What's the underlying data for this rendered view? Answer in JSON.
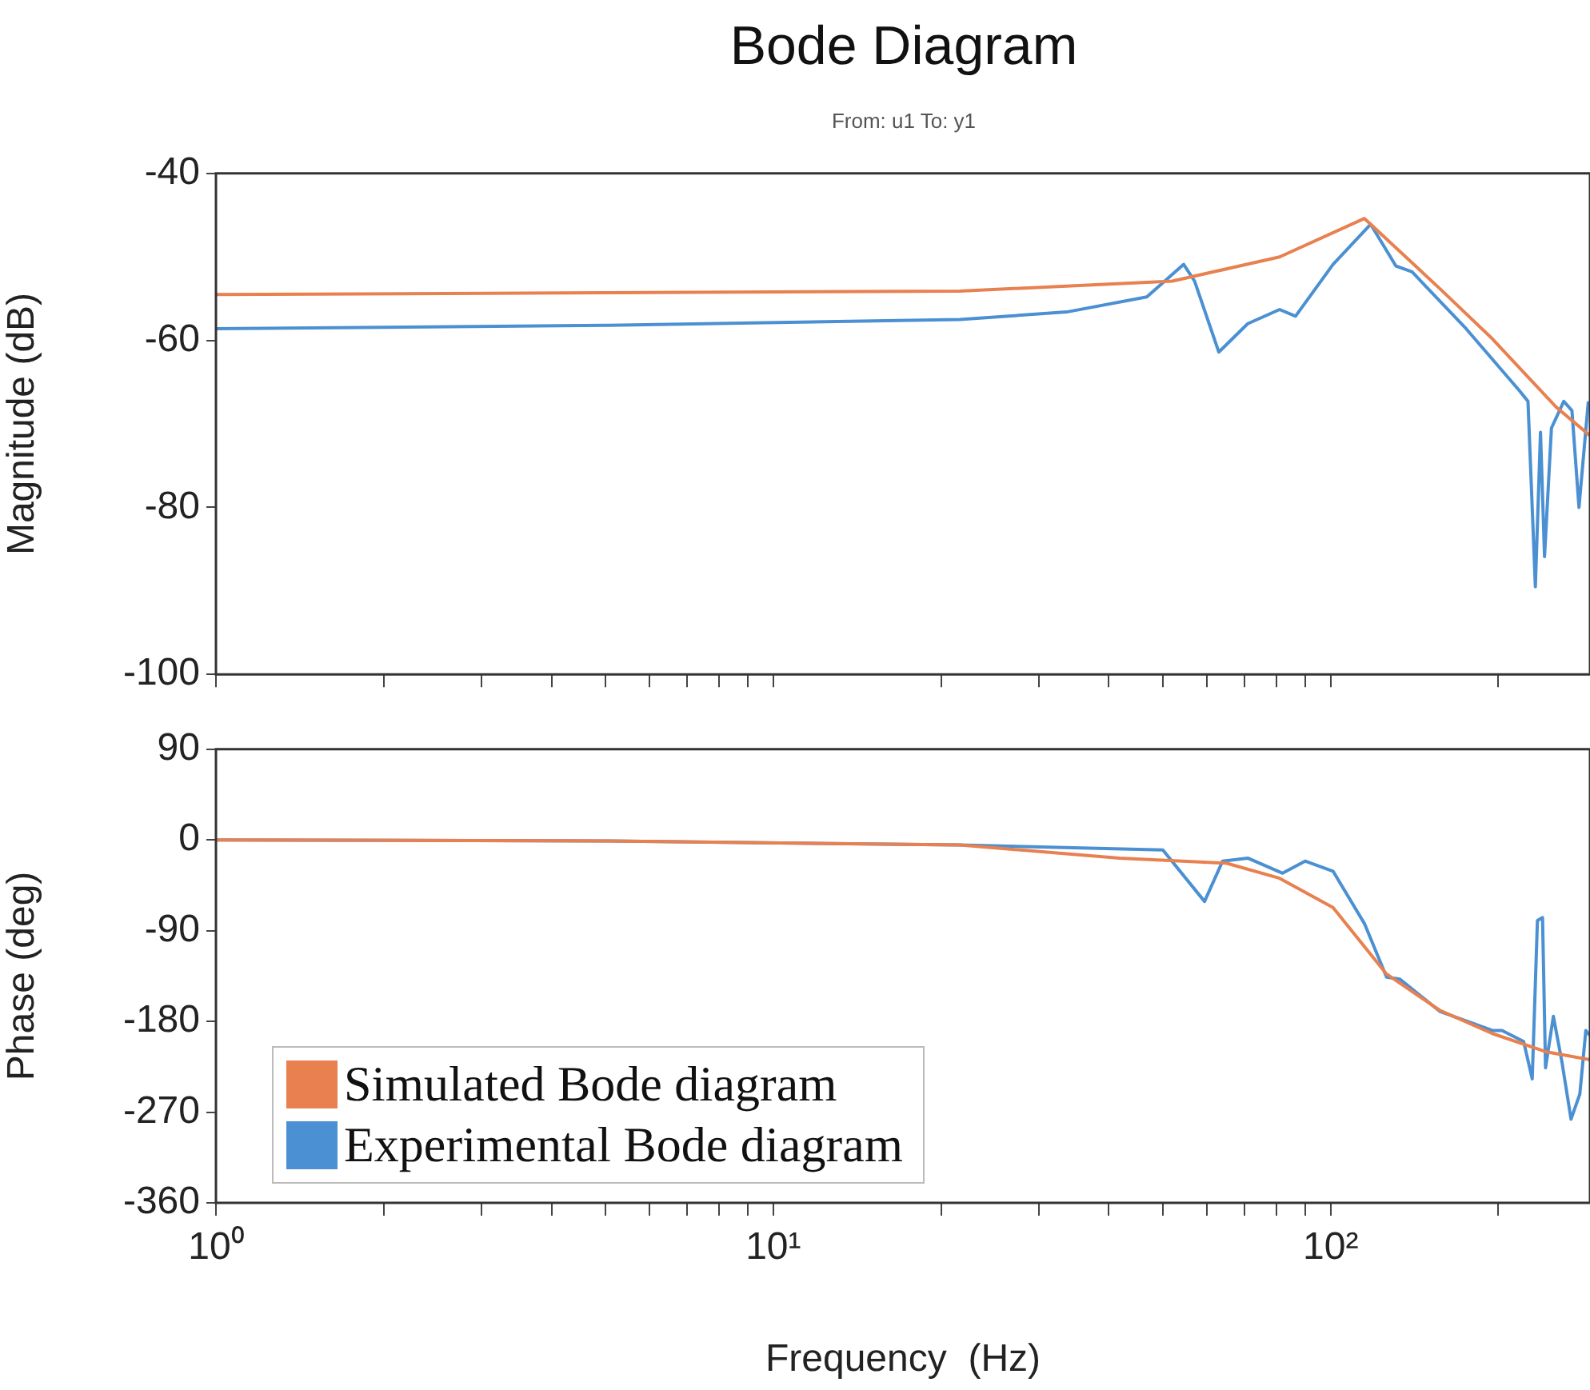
{
  "chart_data": [
    {
      "type": "line",
      "title": "Bode Diagram",
      "subtitle": "From: u1  To: y1",
      "ylabel": "Magnitude (dB)",
      "log": "x",
      "grid": false,
      "legend": false,
      "marker": "none",
      "line_style": "solid",
      "tick_labels": "y",
      "xlim": [
        1,
        292
      ],
      "ylim": [
        -100,
        -40
      ],
      "yticks": [
        -100,
        -80,
        -60,
        -40
      ],
      "xticks": [
        {
          "value": 1,
          "label": null
        },
        {
          "value": 2,
          "label": null
        },
        {
          "value": 3,
          "label": null
        },
        {
          "value": 4,
          "label": null
        },
        {
          "value": 5,
          "label": null
        },
        {
          "value": 6,
          "label": null
        },
        {
          "value": 7,
          "label": null
        },
        {
          "value": 8,
          "label": null
        },
        {
          "value": 9,
          "label": null
        },
        {
          "value": 10,
          "label": null
        },
        {
          "value": 20,
          "label": null
        },
        {
          "value": 30,
          "label": null
        },
        {
          "value": 40,
          "label": null
        },
        {
          "value": 50,
          "label": null
        },
        {
          "value": 60,
          "label": null
        },
        {
          "value": 70,
          "label": null
        },
        {
          "value": 80,
          "label": null
        },
        {
          "value": 90,
          "label": null
        },
        {
          "value": 100,
          "label": null
        },
        {
          "value": 200,
          "label": null
        }
      ],
      "series": [
        {
          "color": "#e8804f",
          "x": [
            1,
            5,
            21.6,
            52,
            81,
            115,
            157,
            195,
            254,
            292
          ],
          "values": [
            -54.5,
            -54.3,
            -54.1,
            -52.9,
            -50,
            -45.4,
            -53.8,
            -59.8,
            -68,
            -71.4
          ]
        },
        {
          "color": "#4a90d2",
          "x": [
            1,
            5,
            21.6,
            33.6,
            46.8,
            54.5,
            57,
            63,
            71,
            81,
            86.5,
            101,
            118,
            131,
            140,
            175,
            218,
            226,
            233,
            238,
            242,
            249,
            262,
            271,
            279,
            290
          ],
          "values": [
            -58.6,
            -58.2,
            -57.5,
            -56.6,
            -54.8,
            -50.9,
            -52.9,
            -61.4,
            -58,
            -56.3,
            -57.1,
            -50.9,
            -46.1,
            -51.1,
            -51.8,
            -58.6,
            -66,
            -67.3,
            -89.5,
            -71,
            -85.9,
            -70.5,
            -67.3,
            -68.4,
            -80,
            -67.3
          ]
        }
      ]
    },
    {
      "type": "line",
      "xlabel": "Frequency  (Hz)",
      "ylabel": "Phase (deg)",
      "log": "x",
      "grid": false,
      "legend": "bottom left",
      "marker": "none",
      "line_style": "solid",
      "xlim": [
        1,
        292
      ],
      "ylim": [
        -360,
        90
      ],
      "yticks": [
        -360,
        -270,
        -180,
        -90,
        0,
        90
      ],
      "xticks": [
        {
          "value": 1,
          "label": "10⁰"
        },
        {
          "value": 2,
          "label": null
        },
        {
          "value": 3,
          "label": null
        },
        {
          "value": 4,
          "label": null
        },
        {
          "value": 5,
          "label": null
        },
        {
          "value": 6,
          "label": null
        },
        {
          "value": 7,
          "label": null
        },
        {
          "value": 8,
          "label": null
        },
        {
          "value": 9,
          "label": null
        },
        {
          "value": 10,
          "label": "10¹"
        },
        {
          "value": 20,
          "label": null
        },
        {
          "value": 30,
          "label": null
        },
        {
          "value": 40,
          "label": null
        },
        {
          "value": 50,
          "label": null
        },
        {
          "value": 60,
          "label": null
        },
        {
          "value": 70,
          "label": null
        },
        {
          "value": 80,
          "label": null
        },
        {
          "value": 90,
          "label": null
        },
        {
          "value": 100,
          "label": "10²"
        },
        {
          "value": 200,
          "label": null
        }
      ],
      "series": [
        {
          "name": "Simulated Bode diagram",
          "color": "#e8804f",
          "x": [
            1,
            5,
            21.6,
            41.8,
            65,
            81,
            101,
            126,
            157,
            195,
            243,
            292
          ],
          "values": [
            0,
            -1,
            -5,
            -18,
            -23,
            -38,
            -67,
            -133,
            -169,
            -192,
            -210,
            -218
          ]
        },
        {
          "name": "Experimental Bode diagram",
          "color": "#4a90d2",
          "x": [
            1,
            5,
            21.6,
            50,
            59.4,
            64,
            71,
            82,
            90,
            101,
            115,
            126,
            133,
            157,
            195,
            203,
            222,
            230,
            235,
            240,
            243,
            251,
            260,
            270,
            280,
            287,
            292
          ],
          "values": [
            0,
            -1,
            -5,
            -10,
            -61,
            -21,
            -18,
            -33,
            -21,
            -31,
            -83,
            -136,
            -138,
            -170,
            -189,
            -189,
            -200,
            -237,
            -80,
            -77,
            -226,
            -175,
            -220,
            -277,
            -252,
            -189,
            -194
          ]
        }
      ]
    }
  ]
}
